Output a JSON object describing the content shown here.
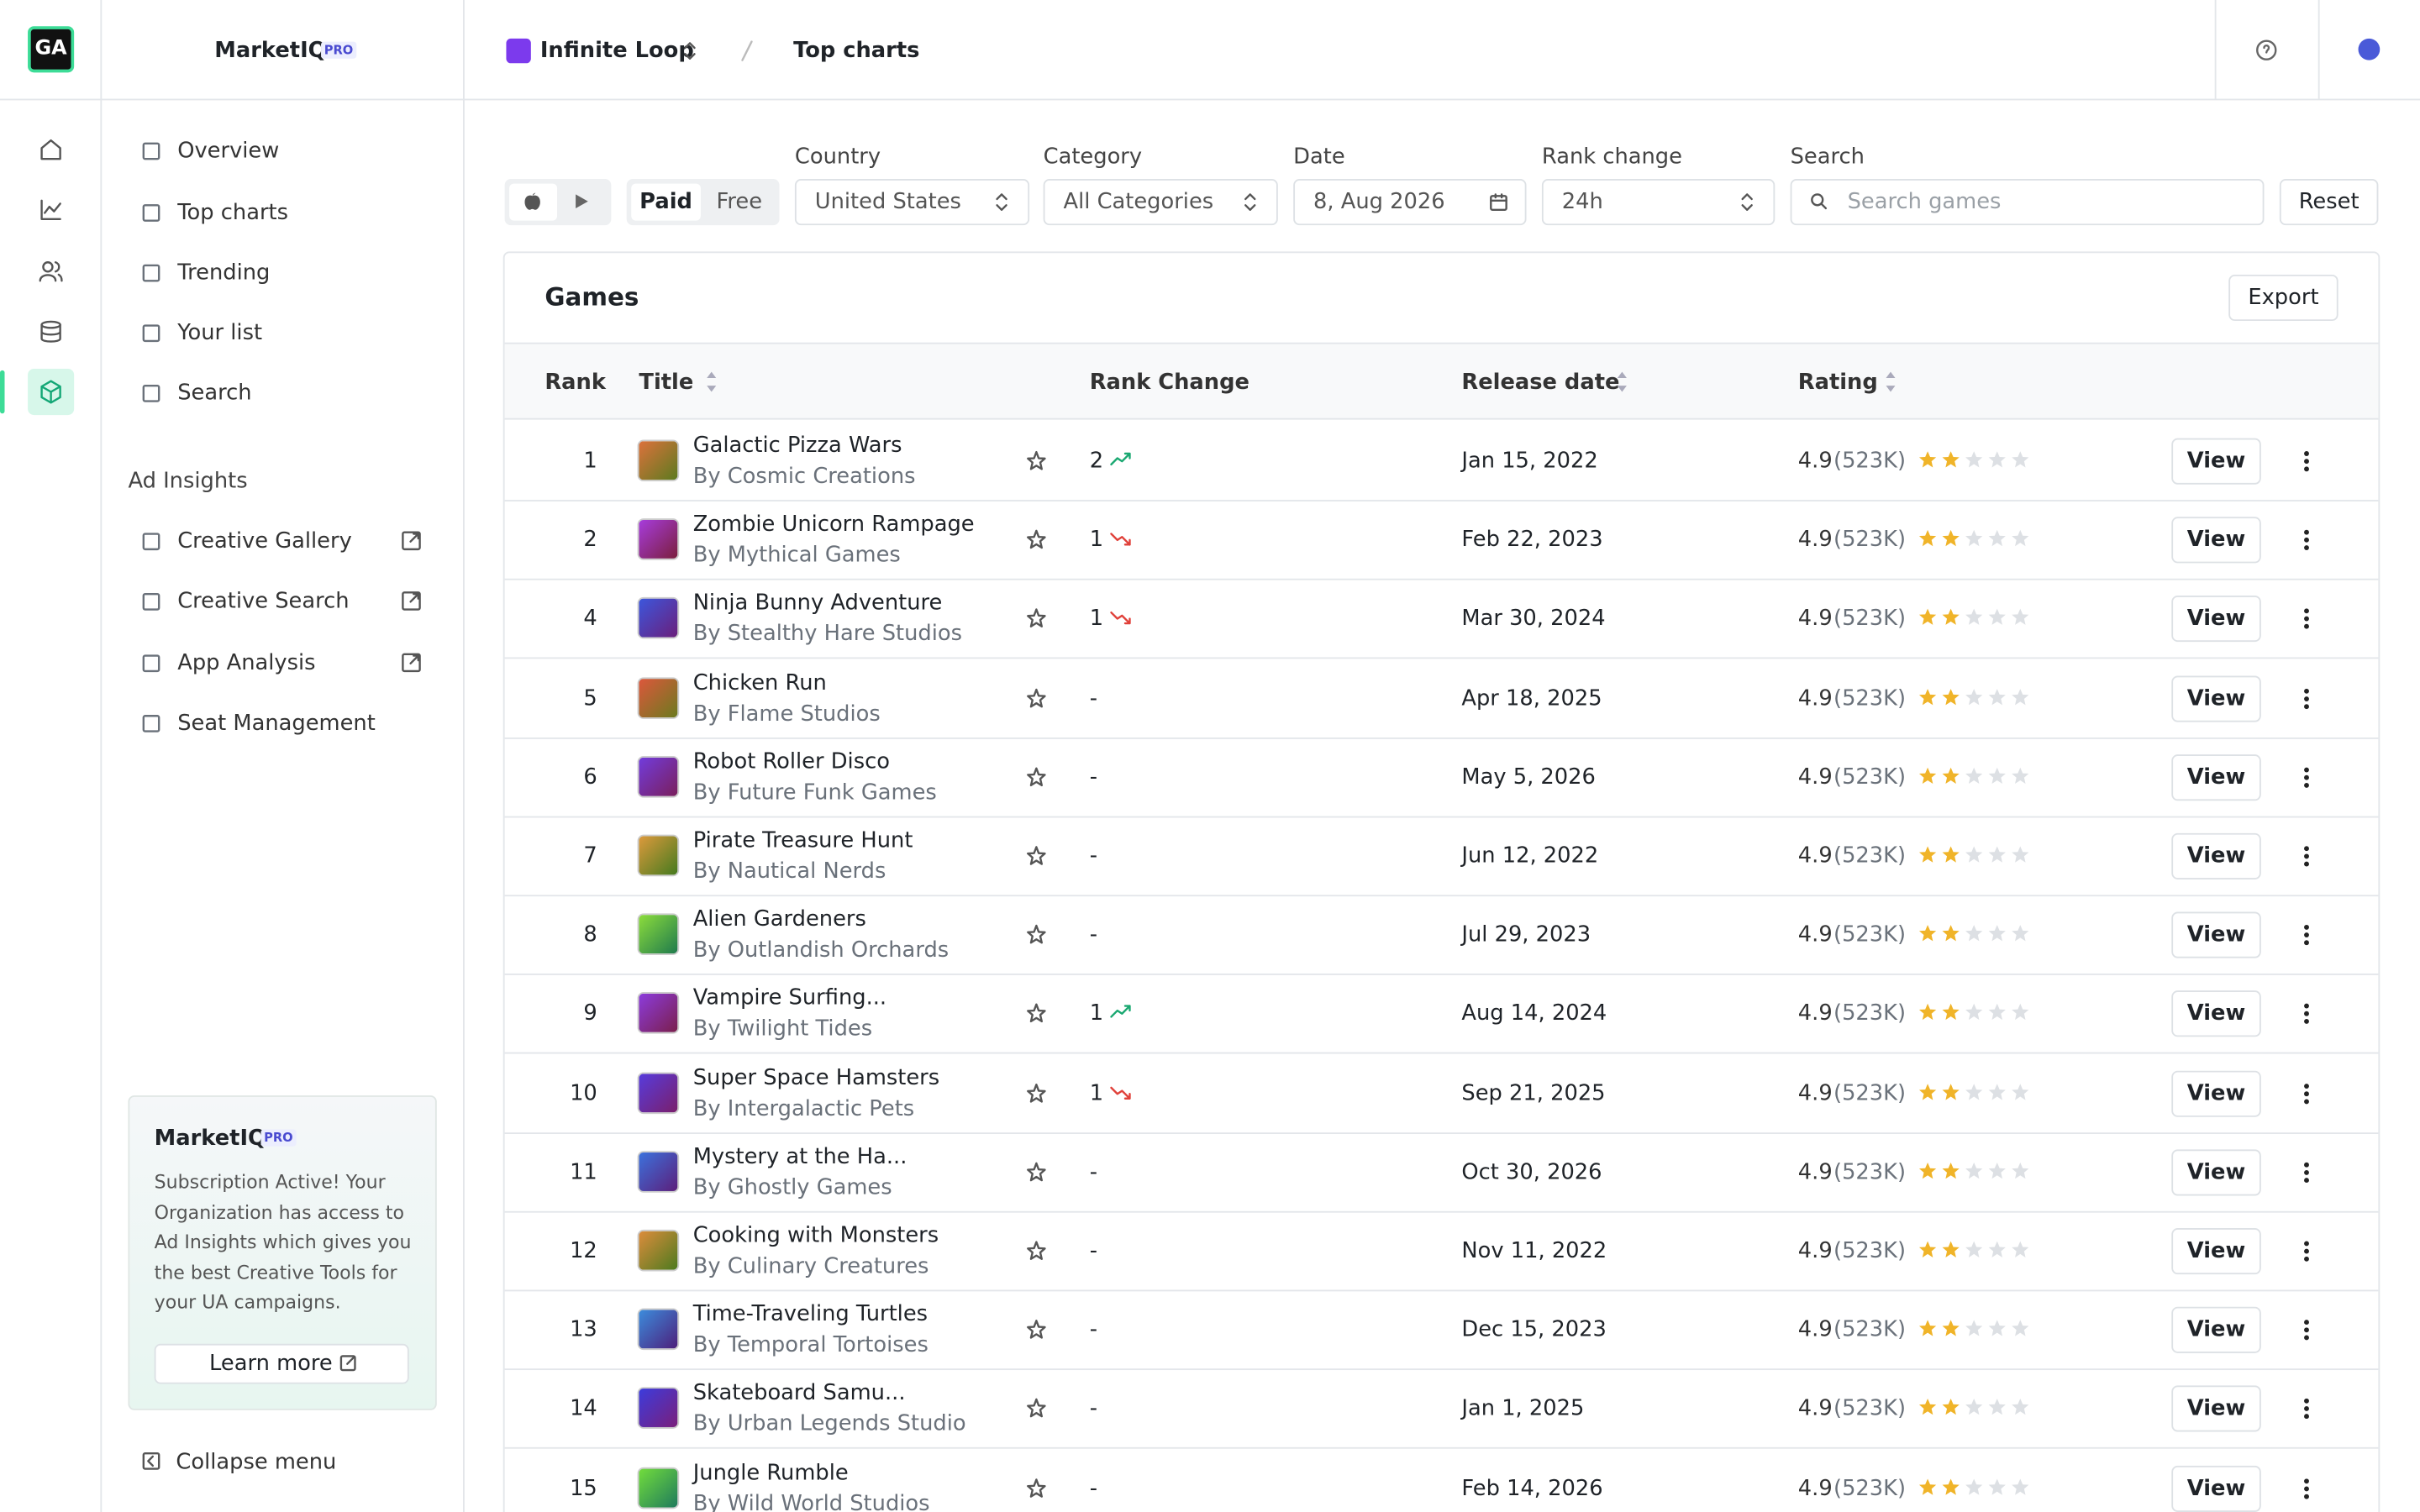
{
  "brand": {
    "logo": "GA",
    "name": "MarketIQ",
    "badge": "PRO"
  },
  "breadcrumb": {
    "workspace": "Infinite Loop",
    "page": "Top charts"
  },
  "nav": {
    "items": [
      "Overview",
      "Top charts",
      "Trending",
      "Your list",
      "Search"
    ],
    "section": "Ad Insights",
    "insights": [
      "Creative Gallery",
      "Creative Search",
      "App Analysis",
      "Seat Management"
    ]
  },
  "promo": {
    "title": "MarketIQ",
    "badge": "PRO",
    "text": "Subscription Active! Your Organization has access to Ad Insights which gives you the best Creative Tools for your UA campaigns.",
    "button": "Learn more"
  },
  "collapse": "Collapse menu",
  "filters": {
    "store_type": [
      "Paid",
      "Free"
    ],
    "fields": [
      {
        "label": "Country",
        "value": "United States"
      },
      {
        "label": "Category",
        "value": "All Categories"
      },
      {
        "label": "Date",
        "value": "8, Aug 2026"
      },
      {
        "label": "Rank change",
        "value": "24h"
      }
    ],
    "search": {
      "label": "Search",
      "placeholder": "Search games"
    },
    "reset": "Reset"
  },
  "table": {
    "title": "Games",
    "export": "Export",
    "columns": [
      "Rank",
      "Title",
      "Rank Change",
      "Release date",
      "Rating"
    ],
    "action": "View",
    "rows": [
      {
        "rank": 1,
        "title": "Galactic Pizza Wars",
        "developer": "By Cosmic Creations",
        "change": 2,
        "trend": "up",
        "date": "Jan 15, 2022",
        "rating": 4.9,
        "reviews": "(523K)",
        "stars": 2
      },
      {
        "rank": 2,
        "title": "Zombie Unicorn Rampage",
        "developer": "By Mythical Games",
        "change": 1,
        "trend": "down",
        "date": "Feb 22, 2023",
        "rating": 4.9,
        "reviews": "(523K)",
        "stars": 2
      },
      {
        "rank": 4,
        "title": "Ninja Bunny Adventure",
        "developer": "By Stealthy Hare Studios",
        "change": 1,
        "trend": "down",
        "date": "Mar 30, 2024",
        "rating": 4.9,
        "reviews": "(523K)",
        "stars": 2
      },
      {
        "rank": 5,
        "title": "Chicken Run",
        "developer": "By Flame Studios",
        "change": "-",
        "trend": null,
        "date": "Apr 18, 2025",
        "rating": 4.9,
        "reviews": "(523K)",
        "stars": 2
      },
      {
        "rank": 6,
        "title": "Robot Roller Disco",
        "developer": "By Future Funk Games",
        "change": "-",
        "trend": null,
        "date": "May 5, 2026",
        "rating": 4.9,
        "reviews": "(523K)",
        "stars": 2
      },
      {
        "rank": 7,
        "title": "Pirate Treasure Hunt",
        "developer": "By Nautical Nerds",
        "change": "-",
        "trend": null,
        "date": "Jun 12, 2022",
        "rating": 4.9,
        "reviews": "(523K)",
        "stars": 2
      },
      {
        "rank": 8,
        "title": "Alien Gardeners",
        "developer": "By Outlandish Orchards",
        "change": "-",
        "trend": null,
        "date": "Jul 29, 2023",
        "rating": 4.9,
        "reviews": "(523K)",
        "stars": 2
      },
      {
        "rank": 9,
        "title": "Vampire Surfing...",
        "developer": "By Twilight Tides",
        "change": 1,
        "trend": "up",
        "date": "Aug 14, 2024",
        "rating": 4.9,
        "reviews": "(523K)",
        "stars": 2
      },
      {
        "rank": 10,
        "title": "Super Space Hamsters",
        "developer": "By Intergalactic Pets",
        "change": 1,
        "trend": "down",
        "date": "Sep 21, 2025",
        "rating": 4.9,
        "reviews": "(523K)",
        "stars": 2
      },
      {
        "rank": 11,
        "title": "Mystery at the Ha...",
        "developer": "By Ghostly Games",
        "change": "-",
        "trend": null,
        "date": "Oct 30, 2026",
        "rating": 4.9,
        "reviews": "(523K)",
        "stars": 2
      },
      {
        "rank": 12,
        "title": "Cooking with Monsters",
        "developer": "By Culinary Creatures",
        "change": "-",
        "trend": null,
        "date": "Nov 11, 2022",
        "rating": 4.9,
        "reviews": "(523K)",
        "stars": 2
      },
      {
        "rank": 13,
        "title": "Time-Traveling Turtles",
        "developer": "By Temporal Tortoises",
        "change": "-",
        "trend": null,
        "date": "Dec 15, 2023",
        "rating": 4.9,
        "reviews": "(523K)",
        "stars": 2
      },
      {
        "rank": 14,
        "title": "Skateboard Samu...",
        "developer": "By Urban Legends Studio",
        "change": "-",
        "trend": null,
        "date": "Jan 1, 2025",
        "rating": 4.9,
        "reviews": "(523K)",
        "stars": 2
      },
      {
        "rank": 15,
        "title": "Jungle Rumble",
        "developer": "By Wild World Studios",
        "change": "-",
        "trend": null,
        "date": "Feb 14, 2026",
        "rating": 4.9,
        "reviews": "(523K)",
        "stars": 2
      }
    ]
  }
}
